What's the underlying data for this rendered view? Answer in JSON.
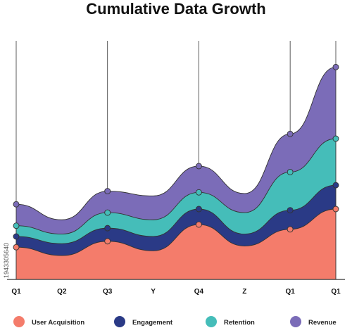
{
  "chart_data": {
    "type": "area",
    "stacked": true,
    "title": "Cumulative Data Growth",
    "categories": [
      "Q1",
      "Q2",
      "Q3",
      "Y",
      "Q4",
      "Z",
      "Q1",
      "Q1"
    ],
    "series": [
      {
        "name": "User Acquisition",
        "color": "#f47c6b",
        "values": [
          13.5,
          10,
          16,
          12,
          23,
          14,
          21,
          29.5
        ]
      },
      {
        "name": "Engagement",
        "color": "#2a3a86",
        "values": [
          4.5,
          5,
          5.5,
          6,
          6.5,
          5,
          8,
          10
        ]
      },
      {
        "name": "Retention",
        "color": "#45bdb9",
        "values": [
          4.5,
          4,
          6.5,
          7,
          7,
          9,
          16,
          19.5
        ]
      },
      {
        "name": "Revenue",
        "color": "#7b6cb8",
        "values": [
          9,
          6,
          9,
          10,
          11,
          8,
          16,
          30
        ]
      }
    ],
    "ylim": [
      0,
      100
    ],
    "vertical_markers_at": [
      0,
      2,
      4,
      6,
      7
    ],
    "legend_position": "bottom",
    "grid": false
  },
  "watermark": "1943305640"
}
